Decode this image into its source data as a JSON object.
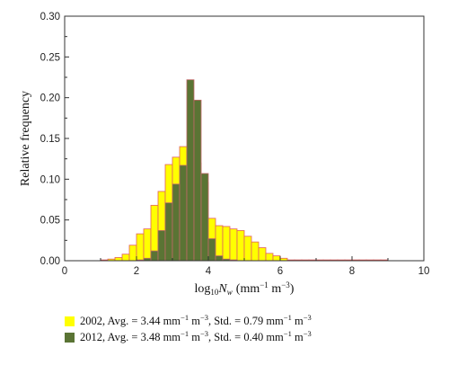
{
  "chart_data": {
    "type": "bar",
    "xlabel": {
      "log": "log",
      "sub": "10",
      "var": "N",
      "var_sub": "w",
      "unit_open": "(mm",
      "exp1": "−1",
      "unit_mid": " m",
      "exp2": "−3",
      "unit_close": ")"
    },
    "ylabel": "Relative frequency",
    "xlim": [
      0,
      10
    ],
    "ylim": [
      0,
      0.3
    ],
    "x_ticks": [
      "0",
      "2",
      "4",
      "6",
      "8",
      "10"
    ],
    "y_ticks": [
      "0.00",
      "0.05",
      "0.10",
      "0.15",
      "0.20",
      "0.25",
      "0.30"
    ],
    "bin_width": 0.2,
    "series": [
      {
        "name": "2002",
        "color": "#ffff00",
        "edge": "#e06060",
        "legend": {
          "prefix": "2002, Avg. = 3.44 mm",
          "e1": "−1",
          "mid1": " m",
          "e2": "−3",
          "sep": ", Std. = 0.79 mm",
          "e3": "−1",
          "mid2": " m",
          "e4": "−3"
        },
        "bins": [
          [
            1.0,
            0.001
          ],
          [
            1.2,
            0.002
          ],
          [
            1.4,
            0.004
          ],
          [
            1.6,
            0.008
          ],
          [
            1.8,
            0.019
          ],
          [
            2.0,
            0.033
          ],
          [
            2.2,
            0.039
          ],
          [
            2.4,
            0.068
          ],
          [
            2.6,
            0.085
          ],
          [
            2.8,
            0.118
          ],
          [
            3.0,
            0.127
          ],
          [
            3.2,
            0.14
          ],
          [
            3.4,
            0.134
          ],
          [
            3.6,
            0.12
          ],
          [
            3.8,
            0.096
          ],
          [
            4.0,
            0.052
          ],
          [
            4.2,
            0.043
          ],
          [
            4.4,
            0.042
          ],
          [
            4.6,
            0.039
          ],
          [
            4.8,
            0.037
          ],
          [
            5.0,
            0.03
          ],
          [
            5.2,
            0.023
          ],
          [
            5.4,
            0.016
          ],
          [
            5.6,
            0.009
          ],
          [
            5.8,
            0.006
          ],
          [
            6.0,
            0.003
          ],
          [
            6.2,
            0.001
          ],
          [
            6.4,
            0.001
          ],
          [
            6.6,
            0.001
          ],
          [
            6.8,
            0.001
          ],
          [
            7.0,
            0.001
          ],
          [
            7.2,
            0.001
          ],
          [
            7.4,
            0.001
          ],
          [
            7.6,
            0.001
          ],
          [
            7.8,
            0.001
          ],
          [
            8.0,
            0.001
          ],
          [
            8.2,
            0.001
          ],
          [
            8.4,
            0.001
          ],
          [
            8.6,
            0.001
          ],
          [
            8.8,
            0.001
          ]
        ]
      },
      {
        "name": "2012",
        "color": "#5a7434",
        "edge": "#c06868",
        "legend": {
          "prefix": "2012, Avg. = 3.48 mm",
          "e1": "−1",
          "mid1": " m",
          "e2": "−3",
          "sep": ", Std. = 0.40 mm",
          "e3": "−1",
          "mid2": " m",
          "e4": "−3"
        },
        "bins": [
          [
            2.0,
            0.001
          ],
          [
            2.2,
            0.003
          ],
          [
            2.4,
            0.012
          ],
          [
            2.6,
            0.037
          ],
          [
            2.8,
            0.071
          ],
          [
            3.0,
            0.094
          ],
          [
            3.2,
            0.117
          ],
          [
            3.4,
            0.222
          ],
          [
            3.6,
            0.197
          ],
          [
            3.8,
            0.107
          ],
          [
            4.0,
            0.027
          ],
          [
            4.2,
            0.006
          ],
          [
            4.4,
            0.002
          ],
          [
            4.6,
            0.001
          ]
        ]
      }
    ]
  }
}
